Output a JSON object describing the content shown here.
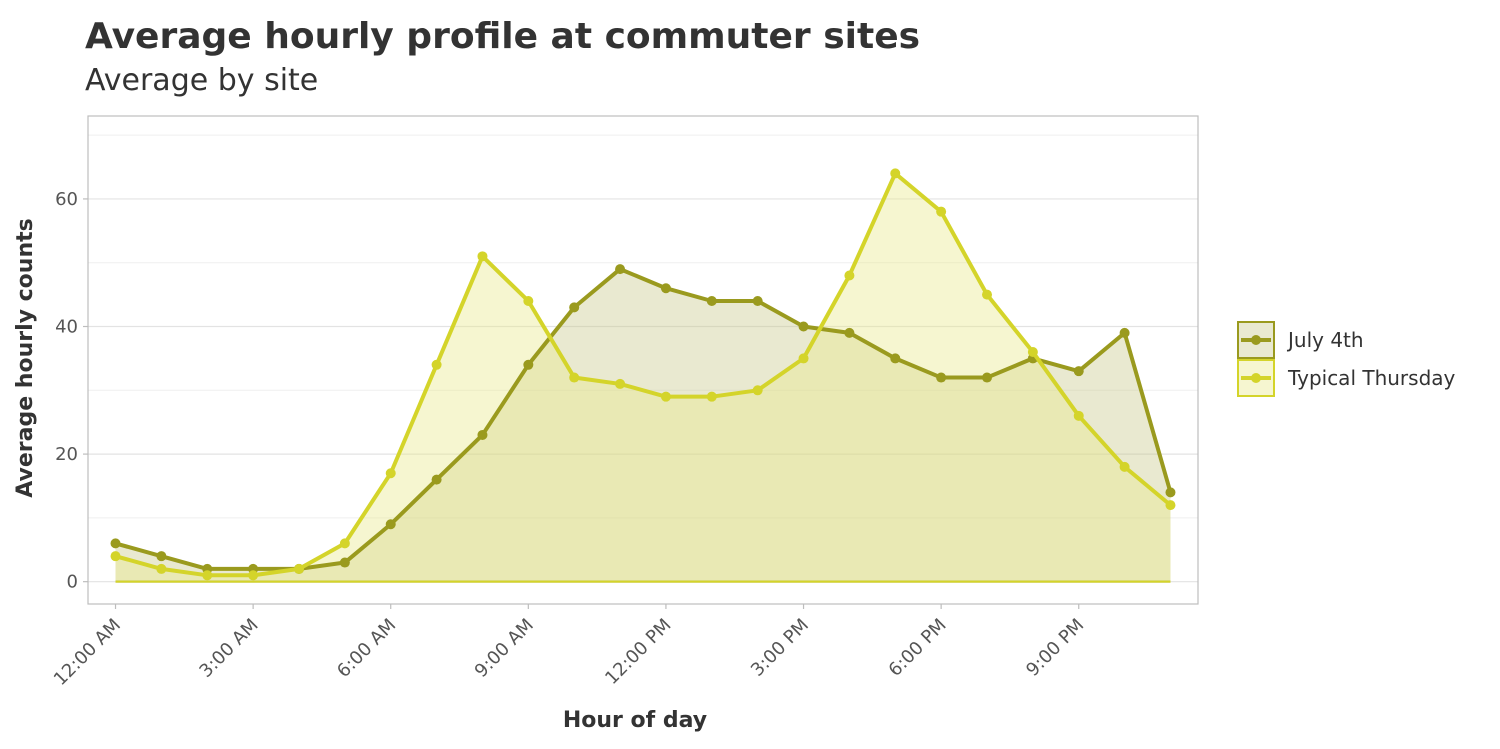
{
  "chart_data": {
    "type": "area",
    "title": "Average hourly profile at commuter sites",
    "subtitle": "Average by site",
    "xlabel": "Hour of day",
    "ylabel": "Average hourly counts",
    "x_ticks": [
      "12:00 AM",
      "3:00 AM",
      "6:00 AM",
      "9:00 AM",
      "12:00 PM",
      "3:00 PM",
      "6:00 PM",
      "9:00 PM"
    ],
    "x_tick_hours": [
      0,
      3,
      6,
      9,
      12,
      15,
      18,
      21
    ],
    "y_ticks": [
      0,
      20,
      40,
      60
    ],
    "xlim": [
      -0.6,
      23.6
    ],
    "ylim": [
      -3.5,
      73
    ],
    "grid": true,
    "legend_position": "right",
    "hours": [
      0,
      1,
      2,
      3,
      4,
      5,
      6,
      7,
      8,
      9,
      10,
      11,
      12,
      13,
      14,
      15,
      16,
      17,
      18,
      19,
      20,
      21,
      22,
      23
    ],
    "series": [
      {
        "name": "July 4th",
        "color": "#9a9a1e",
        "fill": "#c8c88a",
        "values": [
          6,
          4,
          2,
          2,
          2,
          3,
          9,
          16,
          23,
          34,
          43,
          49,
          46,
          44,
          44,
          40,
          39,
          35,
          32,
          32,
          35,
          33,
          39,
          14
        ]
      },
      {
        "name": "Typical Thursday",
        "color": "#d4d42a",
        "fill": "#e8e88a",
        "values": [
          4,
          2,
          1,
          1,
          2,
          6,
          17,
          34,
          51,
          44,
          32,
          31,
          29,
          29,
          30,
          35,
          48,
          64,
          58,
          45,
          36,
          26,
          18,
          12
        ]
      }
    ]
  }
}
